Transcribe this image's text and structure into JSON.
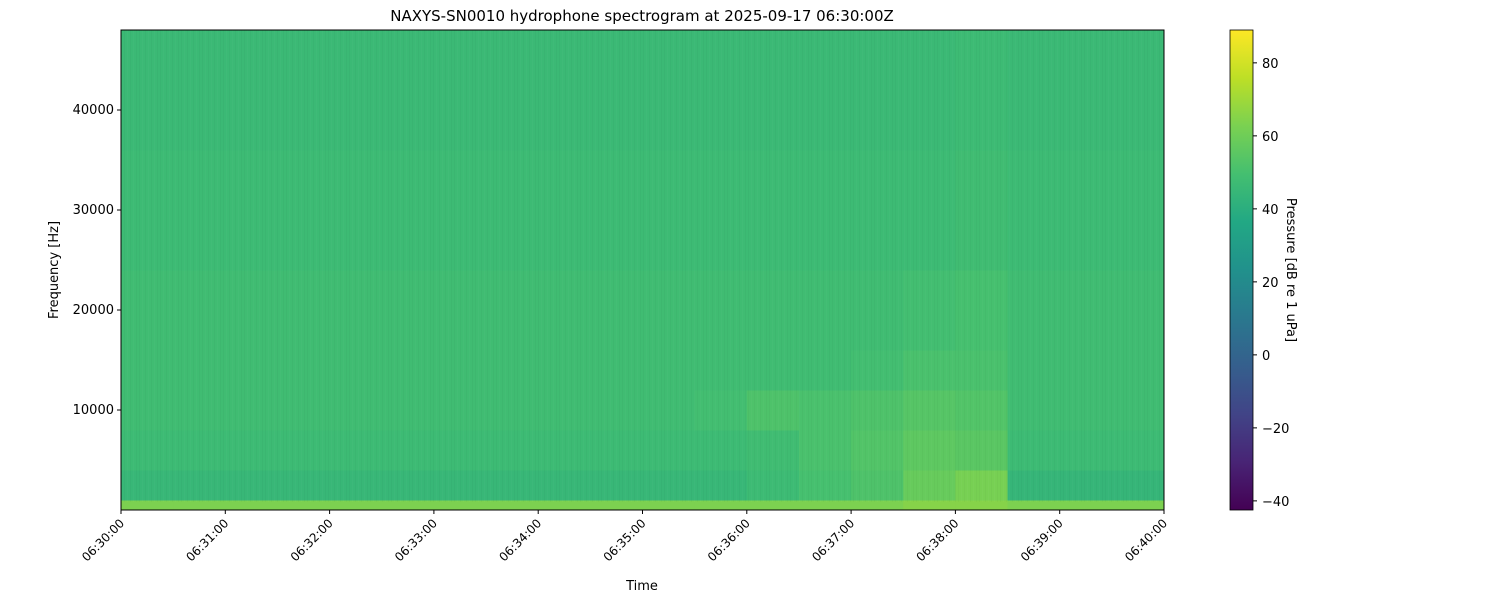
{
  "chart_data": {
    "type": "heatmap",
    "title": "NAXYS-SN0010 hydrophone spectrogram at 2025-09-17 06:30:00Z",
    "xlabel": "Time",
    "ylabel": "Frequency [Hz]",
    "colorbar_label": "Pressure [dB re 1 uPa]",
    "colormap": "viridis",
    "xlim": [
      "06:30:00",
      "06:40:00"
    ],
    "ylim": [
      0,
      48000
    ],
    "clim": [
      -42.5,
      89
    ],
    "x_ticks": [
      "06:30:00",
      "06:31:00",
      "06:32:00",
      "06:33:00",
      "06:34:00",
      "06:35:00",
      "06:36:00",
      "06:37:00",
      "06:38:00",
      "06:39:00",
      "06:40:00"
    ],
    "y_ticks": [
      "10000",
      "20000",
      "30000",
      "40000"
    ],
    "colorbar_ticks": [
      "80",
      "60",
      "40",
      "20",
      "0",
      "−20",
      "−40"
    ],
    "time_bin_starts": [
      "06:30:00",
      "06:30:30",
      "06:31:00",
      "06:31:30",
      "06:32:00",
      "06:32:30",
      "06:33:00",
      "06:33:30",
      "06:34:00",
      "06:34:30",
      "06:35:00",
      "06:35:30",
      "06:36:00",
      "06:36:30",
      "06:37:00",
      "06:37:30",
      "06:38:00",
      "06:38:30",
      "06:39:00",
      "06:39:30"
    ],
    "freq_bin_edges": [
      0,
      1000,
      4000,
      8000,
      12000,
      16000,
      24000,
      36000,
      48000
    ],
    "values_db": [
      [
        63,
        63,
        63,
        63,
        63,
        63,
        63,
        63,
        63,
        63,
        63,
        63,
        63,
        63,
        63,
        65,
        65,
        63,
        63,
        63
      ],
      [
        45,
        45,
        45,
        45,
        45,
        45,
        45,
        45,
        45,
        45,
        45,
        45,
        47,
        50,
        52,
        58,
        62,
        44,
        44,
        44
      ],
      [
        47,
        47,
        47,
        47,
        47,
        47,
        47,
        47,
        47,
        47,
        47,
        47,
        48,
        51,
        53,
        56,
        55,
        47,
        47,
        47
      ],
      [
        48,
        48,
        48,
        48,
        48,
        48,
        48,
        48,
        48,
        48,
        48,
        49,
        52,
        51,
        52,
        54,
        53,
        48,
        48,
        48
      ],
      [
        48,
        48,
        48,
        48,
        48,
        48,
        48,
        48,
        48,
        48,
        48,
        48,
        48,
        48,
        49,
        51,
        51,
        48,
        48,
        48
      ],
      [
        48,
        48,
        48,
        48,
        48,
        48,
        48,
        48,
        48,
        48,
        48,
        48,
        48,
        48,
        48,
        49,
        50,
        48,
        48,
        48
      ],
      [
        47,
        47,
        47,
        47,
        47,
        47,
        47,
        47,
        47,
        47,
        47,
        47,
        47,
        47,
        47,
        47,
        48,
        47,
        47,
        47
      ],
      [
        46,
        46,
        46,
        46,
        46,
        46,
        46,
        46,
        46,
        46,
        46,
        46,
        46,
        46,
        46,
        46,
        47,
        46,
        46,
        46
      ]
    ],
    "grid": false
  }
}
